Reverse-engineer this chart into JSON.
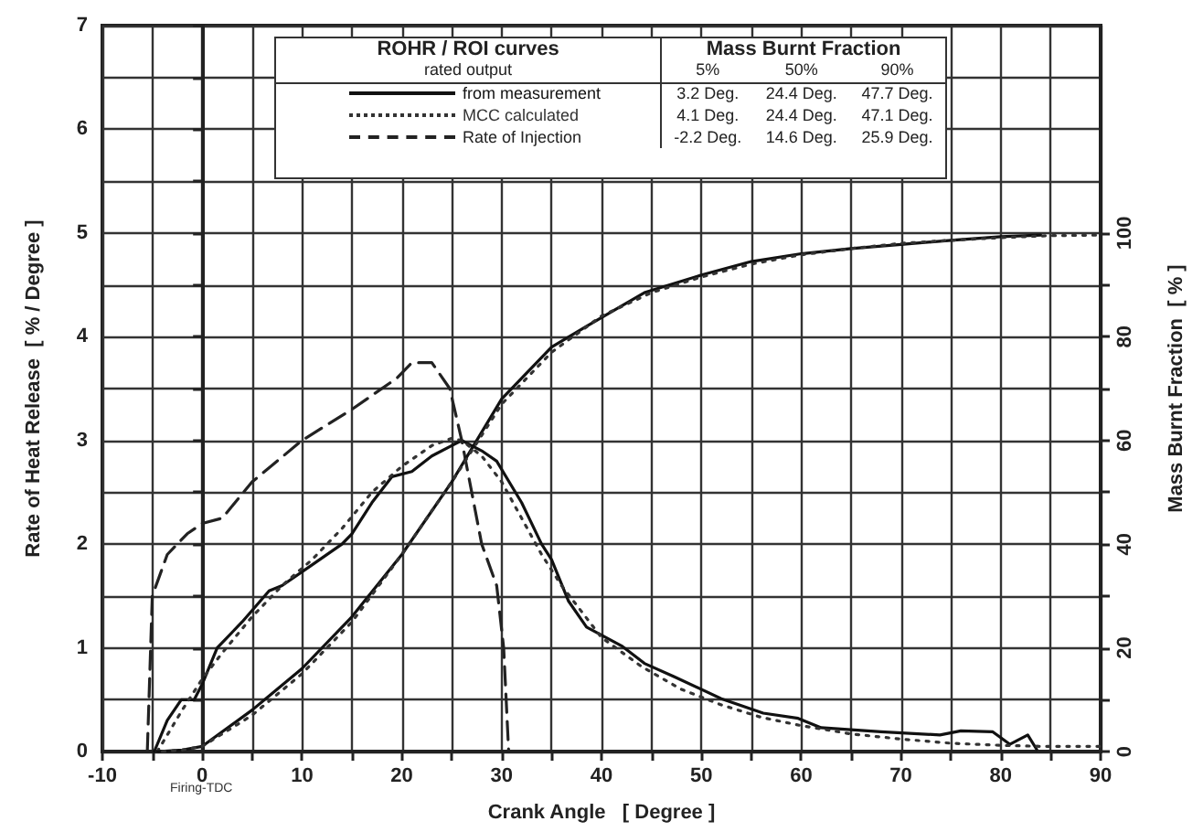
{
  "chart_data": {
    "type": "line",
    "xlabel": "Crank Angle   [ Degree ]",
    "ylabel": "Rate of Heat Release  [ % / Degree ]",
    "y2label": "Mass Burnt Fraction  [ % ]",
    "legend_title": "ROHR / ROI curves",
    "annotations": [
      "rated output",
      "Mass Burnt Fraction",
      "5%",
      "50%",
      "90%",
      "3.2 Deg.",
      "24.4 Deg.",
      "47.7 Deg.",
      "4.1 Deg.",
      "24.4 Deg.",
      "47.1 Deg.",
      "-2.2 Deg.",
      "14.6 Deg.",
      "25.9 Deg.",
      "Firing-TDC"
    ],
    "xlim": [
      -10,
      90
    ],
    "xticks": [
      -10,
      {
        "value": -5,
        "label": null
      },
      0,
      {
        "value": 5,
        "label": null
      },
      10,
      {
        "value": 15,
        "label": null
      },
      20,
      {
        "value": 25,
        "label": null
      },
      30,
      {
        "value": 35,
        "label": null
      },
      40,
      {
        "value": 45,
        "label": null
      },
      50,
      {
        "value": 55,
        "label": null
      },
      60,
      {
        "value": 65,
        "label": null
      },
      70,
      {
        "value": 75,
        "label": null
      },
      80,
      {
        "value": 85,
        "label": null
      },
      90
    ],
    "ylim": [
      0,
      7
    ],
    "yticks": [
      0,
      {
        "value": 0.5,
        "label": null
      },
      1,
      {
        "value": 1.5,
        "label": null
      },
      2,
      {
        "value": 2.5,
        "label": null
      },
      3,
      {
        "value": 3.5,
        "label": null
      },
      4,
      {
        "value": 4.5,
        "label": null
      },
      5,
      {
        "value": 5.5,
        "label": null
      },
      6,
      {
        "value": 6.5,
        "label": null
      },
      7
    ],
    "y2lim": [
      0,
      140
    ],
    "y2ticks": [
      0,
      {
        "value": 10,
        "label": null
      },
      20,
      {
        "value": 30,
        "label": null
      },
      40,
      {
        "value": 50,
        "label": null
      },
      60,
      {
        "value": 70,
        "label": null
      },
      80,
      {
        "value": 90,
        "label": null
      },
      100
    ],
    "grid": true,
    "legend": "top",
    "series": [
      {
        "name": "from measurement",
        "color": "#111111",
        "line_style": "solid",
        "x": [
          -4.8,
          -3.5,
          -2.1,
          -0.8,
          0,
          1.5,
          4,
          6.7,
          8,
          11,
          14,
          15,
          17,
          19,
          21,
          23,
          25,
          26,
          28,
          29.5,
          32,
          34,
          35,
          36.7,
          38.5,
          42,
          44.3,
          47.3,
          52,
          56.2,
          59.7,
          62,
          68,
          73.9,
          76,
          79.2,
          80.9,
          82.7,
          83.6
        ],
        "values": [
          0,
          0.3,
          0.5,
          0.5,
          0.65,
          1.0,
          1.25,
          1.55,
          1.6,
          1.8,
          2.0,
          2.1,
          2.4,
          2.65,
          2.7,
          2.85,
          2.95,
          3.0,
          2.9,
          2.8,
          2.4,
          2.0,
          1.85,
          1.45,
          1.2,
          1.02,
          0.85,
          0.72,
          0.51,
          0.37,
          0.32,
          0.23,
          0.19,
          0.16,
          0.2,
          0.19,
          0.07,
          0.16,
          0.02
        ]
      },
      {
        "name": "MCC calculated",
        "color": "#333333",
        "line_style": "dotted",
        "x": [
          -4.5,
          -2,
          0,
          2,
          5,
          8,
          11,
          14,
          17,
          20,
          23,
          25,
          26,
          28,
          30,
          32,
          34,
          36,
          38,
          40,
          44,
          48,
          52,
          56,
          60,
          65,
          70,
          75,
          80,
          84,
          90
        ],
        "values": [
          0,
          0.4,
          0.7,
          0.95,
          1.3,
          1.6,
          1.85,
          2.15,
          2.5,
          2.75,
          2.95,
          3.02,
          3.0,
          2.85,
          2.6,
          2.25,
          1.9,
          1.6,
          1.35,
          1.1,
          0.82,
          0.6,
          0.45,
          0.33,
          0.25,
          0.17,
          0.12,
          0.08,
          0.06,
          0.05,
          0.05
        ]
      },
      {
        "name": "Rate of Injection",
        "color": "#222222",
        "line_style": "dashed",
        "x": [
          -5.5,
          -5,
          -3.5,
          -1.5,
          0,
          2,
          5,
          10,
          15,
          19.5,
          21,
          23,
          24.8,
          26,
          28,
          29.5,
          30.2,
          30.7
        ],
        "values": [
          0,
          1.5,
          1.9,
          2.1,
          2.2,
          2.25,
          2.6,
          3.0,
          3.3,
          3.6,
          3.75,
          3.75,
          3.5,
          3.0,
          2.0,
          1.6,
          1.0,
          0
        ]
      },
      {
        "color": "#111111",
        "line_style": "solid",
        "axis": "y2",
        "x": [
          -4.5,
          -2,
          0,
          5,
          10,
          15,
          20,
          25,
          30,
          35,
          38.5,
          44.3,
          50.2,
          55,
          60,
          65,
          70,
          75,
          80,
          84
        ],
        "values": [
          0,
          0.3,
          1,
          8,
          16,
          26,
          38,
          52,
          68,
          78,
          82,
          88.5,
          92,
          94.5,
          96,
          97,
          97.8,
          98.6,
          99.3,
          99.6
        ]
      },
      {
        "color": "#333333",
        "line_style": "dotted",
        "axis": "y2",
        "x": [
          -4,
          -2,
          0,
          5,
          10,
          15,
          20,
          25,
          30,
          35,
          40,
          45,
          50,
          55,
          60,
          65,
          70,
          75,
          80,
          85,
          90
        ],
        "values": [
          0,
          0.3,
          1,
          7,
          15,
          25,
          38,
          52,
          67,
          77,
          84,
          88.5,
          91.5,
          94,
          95.8,
          97,
          98,
          98.6,
          99.1,
          99.5,
          99.6
        ]
      }
    ]
  }
}
